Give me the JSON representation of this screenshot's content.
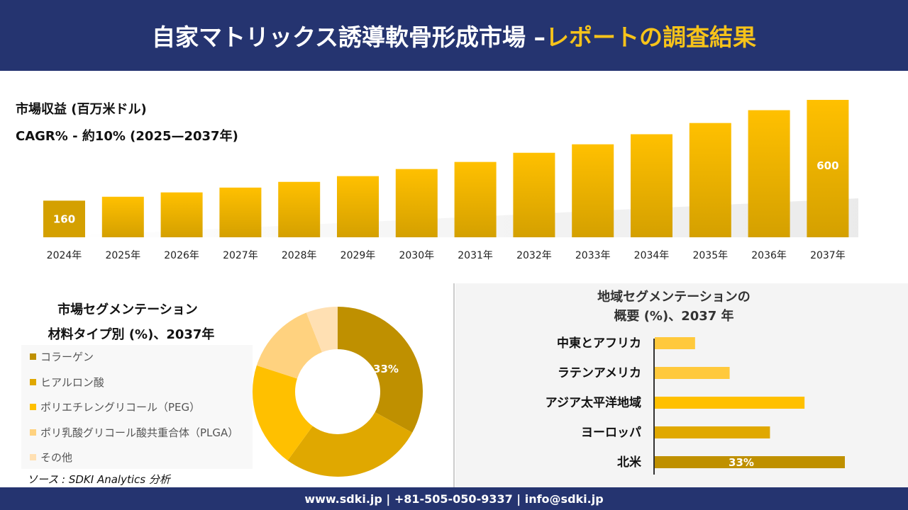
{
  "header": {
    "title_main": "自家マトリックス誘導軟骨形成市場 –",
    "title_accent": "レポートの調査結果"
  },
  "colors": {
    "header_bg": "#253470",
    "accent": "#f7c31a",
    "bar": "#e0a800"
  },
  "chart_data": [
    {
      "type": "bar",
      "title": "市場収益 (百万米ドル)",
      "subtitle": "CAGR% - 約10% (2025—2037年)",
      "categories": [
        "2024年",
        "2025年",
        "2026年",
        "2027年",
        "2028年",
        "2029年",
        "2030年",
        "2031年",
        "2032年",
        "2033年",
        "2034年",
        "2035年",
        "2036年",
        "2037年"
      ],
      "values": [
        160,
        177,
        196,
        217,
        242,
        267,
        298,
        329,
        369,
        406,
        450,
        499,
        555,
        600
      ],
      "data_labels": {
        "0": "160",
        "13": "600"
      }
    },
    {
      "type": "pie",
      "title": "市場セグメンテーション",
      "subtitle": "材料タイプ別 (%)、2037年",
      "categories": [
        "コラーゲン",
        "ヒアルロン酸",
        "ポリエチレングリコール（PEG）",
        "ポリ乳酸グリコール酸共重合体（PLGA）",
        "その他"
      ],
      "values": [
        33,
        27,
        20,
        14,
        6
      ],
      "colors": [
        "#bf9000",
        "#e0a800",
        "#ffc000",
        "#ffd27f",
        "#ffe0b3"
      ],
      "data_label": "33%",
      "legend": "left"
    },
    {
      "type": "bar",
      "orientation": "horizontal",
      "title": "地域セグメンテーションの",
      "subtitle": "概要 (%)、2037 年",
      "categories": [
        "中東とアフリカ",
        "ラテンアメリカ",
        "アジア太平洋地域",
        "ヨーロッパ",
        "北米"
      ],
      "values": [
        7,
        13,
        26,
        20,
        33
      ],
      "colors": [
        "#ffc93c",
        "#ffc93c",
        "#ffc000",
        "#e0a800",
        "#bf9000"
      ],
      "data_label": "33%"
    }
  ],
  "source": "ソース : SDKI Analytics 分析",
  "footer": "www.sdki.jp | +81-505-050-9337 | info@sdki.jp"
}
